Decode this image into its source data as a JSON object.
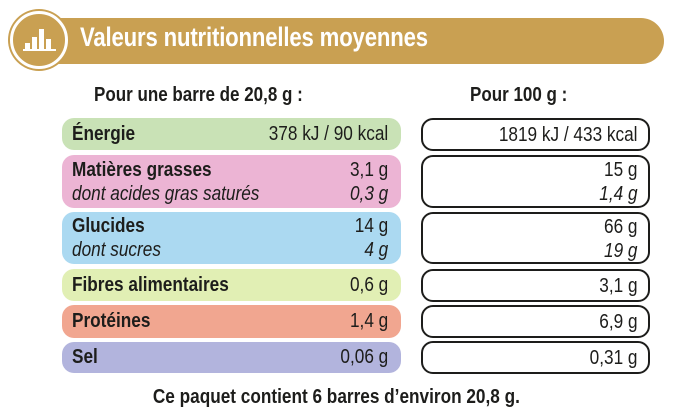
{
  "title": "Valeurs nutritionnelles moyennes",
  "icon": "bar-chart-icon",
  "colors": {
    "header": "#c9a052",
    "energie": "#c9e2b6",
    "matieres": "#ecb4d4",
    "glucides": "#abd9f1",
    "fibres": "#e1efb4",
    "proteines": "#f1a690",
    "sel": "#b2b4dd"
  },
  "columns": {
    "per_bar": "Pour une barre de 20,8 g :",
    "per_100": "Pour 100 g :"
  },
  "rows": [
    {
      "label": "Énergie",
      "bar": "378 kJ / 90 kcal",
      "per100": "1819 kJ / 433 kcal"
    },
    {
      "label": "Matières grasses",
      "bar": "3,1 g",
      "per100": "15 g",
      "sub_label": "dont acides gras saturés",
      "sub_bar": "0,3 g",
      "sub_per100": "1,4 g"
    },
    {
      "label": "Glucides",
      "bar": "14 g",
      "per100": "66 g",
      "sub_label": "dont sucres",
      "sub_bar": "4 g",
      "sub_per100": "19 g"
    },
    {
      "label": "Fibres alimentaires",
      "bar": "0,6 g",
      "per100": "3,1 g"
    },
    {
      "label": "Protéines",
      "bar": "1,4 g",
      "per100": "6,9 g"
    },
    {
      "label": "Sel",
      "bar": "0,06 g",
      "per100": "0,31 g"
    }
  ],
  "footer": "Ce paquet contient 6 barres d’environ 20,8 g."
}
